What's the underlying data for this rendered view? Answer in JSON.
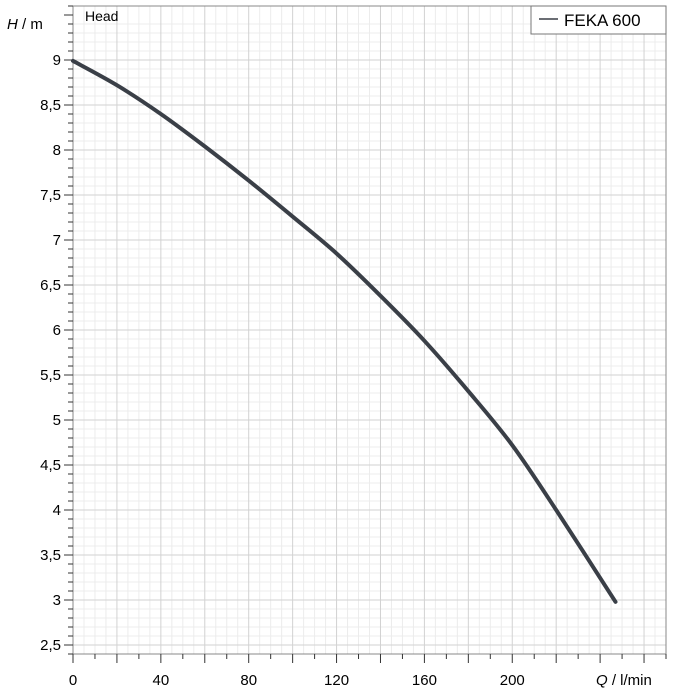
{
  "chart_data": {
    "type": "line",
    "title": "Head",
    "ylabel_symbol": "H",
    "ylabel_unit": " / m",
    "xlabel_symbol": "Q",
    "xlabel_unit": " / l/min",
    "xlim": [
      0,
      270
    ],
    "ylim": [
      2.4,
      9.6
    ],
    "x_ticks": [
      0,
      40,
      80,
      120,
      160,
      200
    ],
    "x_tick_labels": [
      "0",
      "40",
      "80",
      "120",
      "160",
      "200"
    ],
    "y_ticks": [
      2.5,
      3,
      3.5,
      4,
      4.5,
      5,
      5.5,
      6,
      6.5,
      7,
      7.5,
      8,
      8.5,
      9
    ],
    "y_tick_labels": [
      "2,5",
      "3",
      "3,5",
      "4",
      "4,5",
      "5",
      "5,5",
      "6",
      "6,5",
      "7",
      "7,5",
      "8",
      "8,5",
      "9"
    ],
    "grid": true,
    "legend_position": "top-right",
    "line_color": "#3a3f47",
    "series": [
      {
        "name": "FEKA 600",
        "x": [
          0,
          20,
          40,
          60,
          80,
          100,
          120,
          140,
          160,
          180,
          200,
          220,
          247
        ],
        "y": [
          8.99,
          8.72,
          8.4,
          8.04,
          7.66,
          7.26,
          6.85,
          6.38,
          5.88,
          5.32,
          4.72,
          4.0,
          2.98
        ]
      }
    ]
  }
}
